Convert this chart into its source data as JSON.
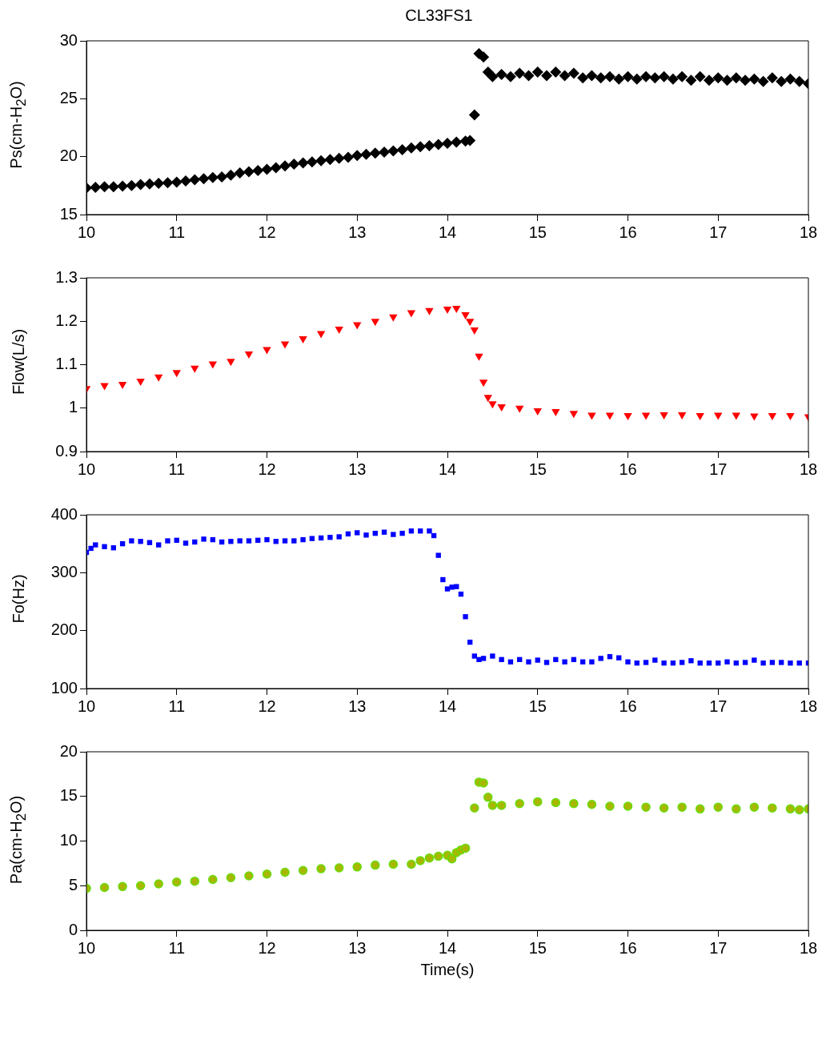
{
  "chart_data": [
    {
      "type": "scatter",
      "title": "CL33FS1",
      "ylabel": "Ps(cm-H$_{2}$O)",
      "marker": "diamond",
      "xlim": [
        10,
        18
      ],
      "xticks": [
        10,
        11,
        12,
        13,
        14,
        15,
        16,
        17,
        18
      ],
      "ylim": [
        15,
        30
      ],
      "yticks": [
        15,
        20,
        25,
        30
      ],
      "grid": false,
      "legend": false,
      "series": [
        {
          "color": "#000000",
          "x": [
            10.0,
            10.1,
            10.2,
            10.3,
            10.4,
            10.5,
            10.6,
            10.7,
            10.8,
            10.9,
            11.0,
            11.1,
            11.2,
            11.3,
            11.4,
            11.5,
            11.6,
            11.7,
            11.8,
            11.9,
            12.0,
            12.1,
            12.2,
            12.3,
            12.4,
            12.5,
            12.6,
            12.7,
            12.8,
            12.9,
            13.0,
            13.1,
            13.2,
            13.3,
            13.4,
            13.5,
            13.6,
            13.7,
            13.8,
            13.9,
            14.0,
            14.1,
            14.2,
            14.25,
            14.3,
            14.35,
            14.4,
            14.45,
            14.5,
            14.6,
            14.7,
            14.8,
            14.9,
            15.0,
            15.1,
            15.2,
            15.3,
            15.4,
            15.5,
            15.6,
            15.7,
            15.8,
            15.9,
            16.0,
            16.1,
            16.2,
            16.3,
            16.4,
            16.5,
            16.6,
            16.7,
            16.8,
            16.9,
            17.0,
            17.1,
            17.2,
            17.3,
            17.4,
            17.5,
            17.6,
            17.7,
            17.8,
            17.9,
            18.0
          ],
          "values": [
            17.3,
            17.35,
            17.4,
            17.4,
            17.45,
            17.5,
            17.6,
            17.65,
            17.7,
            17.75,
            17.8,
            17.9,
            18.0,
            18.1,
            18.2,
            18.25,
            18.4,
            18.6,
            18.7,
            18.8,
            18.9,
            19.05,
            19.2,
            19.35,
            19.45,
            19.55,
            19.65,
            19.75,
            19.85,
            19.95,
            20.1,
            20.2,
            20.3,
            20.4,
            20.5,
            20.6,
            20.75,
            20.85,
            20.95,
            21.05,
            21.15,
            21.25,
            21.35,
            21.4,
            23.6,
            28.9,
            28.6,
            27.3,
            26.9,
            27.1,
            26.9,
            27.2,
            27.0,
            27.3,
            27.0,
            27.3,
            27.0,
            27.2,
            26.8,
            27.0,
            26.8,
            26.9,
            26.7,
            26.9,
            26.7,
            26.9,
            26.8,
            26.9,
            26.7,
            26.9,
            26.6,
            26.9,
            26.6,
            26.8,
            26.6,
            26.8,
            26.6,
            26.7,
            26.5,
            26.8,
            26.5,
            26.7,
            26.5,
            26.3
          ]
        }
      ]
    },
    {
      "type": "scatter",
      "ylabel": "Flow(L/s)",
      "marker": "triangle",
      "xlim": [
        10,
        18
      ],
      "xticks": [
        10,
        11,
        12,
        13,
        14,
        15,
        16,
        17,
        18
      ],
      "ylim": [
        0.9,
        1.3
      ],
      "yticks": [
        0.9,
        1,
        1.1,
        1.2,
        1.3
      ],
      "grid": false,
      "legend": false,
      "series": [
        {
          "color": "#ff0000",
          "x": [
            10.0,
            10.2,
            10.4,
            10.6,
            10.8,
            11.0,
            11.2,
            11.4,
            11.6,
            11.8,
            12.0,
            12.2,
            12.4,
            12.6,
            12.8,
            13.0,
            13.2,
            13.4,
            13.6,
            13.8,
            14.0,
            14.1,
            14.2,
            14.25,
            14.3,
            14.35,
            14.4,
            14.45,
            14.5,
            14.6,
            14.8,
            15.0,
            15.2,
            15.4,
            15.6,
            15.8,
            16.0,
            16.2,
            16.4,
            16.6,
            16.8,
            17.0,
            17.2,
            17.4,
            17.6,
            17.8,
            18.0
          ],
          "values": [
            1.045,
            1.052,
            1.055,
            1.062,
            1.072,
            1.082,
            1.092,
            1.102,
            1.108,
            1.125,
            1.135,
            1.148,
            1.16,
            1.172,
            1.182,
            1.192,
            1.2,
            1.21,
            1.22,
            1.225,
            1.228,
            1.23,
            1.215,
            1.2,
            1.18,
            1.12,
            1.06,
            1.025,
            1.01,
            1.003,
            1.0,
            0.994,
            0.992,
            0.988,
            0.984,
            0.984,
            0.983,
            0.984,
            0.985,
            0.985,
            0.983,
            0.984,
            0.984,
            0.982,
            0.983,
            0.983,
            0.98
          ]
        }
      ]
    },
    {
      "type": "scatter",
      "ylabel": "Fo(Hz)",
      "marker": "square",
      "xlim": [
        10,
        18
      ],
      "xticks": [
        10,
        11,
        12,
        13,
        14,
        15,
        16,
        17,
        18
      ],
      "ylim": [
        100,
        400
      ],
      "yticks": [
        100,
        200,
        300,
        400
      ],
      "grid": false,
      "legend": false,
      "series": [
        {
          "color": "#0000ff",
          "x": [
            10.0,
            10.05,
            10.1,
            10.2,
            10.3,
            10.4,
            10.5,
            10.6,
            10.7,
            10.8,
            10.9,
            11.0,
            11.1,
            11.2,
            11.3,
            11.4,
            11.5,
            11.6,
            11.7,
            11.8,
            11.9,
            12.0,
            12.1,
            12.2,
            12.3,
            12.4,
            12.5,
            12.6,
            12.7,
            12.8,
            12.9,
            13.0,
            13.1,
            13.2,
            13.3,
            13.4,
            13.5,
            13.6,
            13.7,
            13.8,
            13.85,
            13.9,
            13.95,
            14.0,
            14.05,
            14.1,
            14.15,
            14.2,
            14.25,
            14.3,
            14.35,
            14.4,
            14.5,
            14.6,
            14.7,
            14.8,
            14.9,
            15.0,
            15.1,
            15.2,
            15.3,
            15.4,
            15.5,
            15.6,
            15.7,
            15.8,
            15.9,
            16.0,
            16.1,
            16.2,
            16.3,
            16.4,
            16.5,
            16.6,
            16.7,
            16.8,
            16.9,
            17.0,
            17.1,
            17.2,
            17.3,
            17.4,
            17.5,
            17.6,
            17.7,
            17.8,
            17.9,
            18.0
          ],
          "values": [
            335,
            342,
            348,
            345,
            343,
            350,
            355,
            354,
            352,
            348,
            355,
            356,
            351,
            353,
            358,
            357,
            353,
            354,
            355,
            355,
            356,
            357,
            354,
            355,
            355,
            357,
            359,
            360,
            361,
            362,
            367,
            369,
            365,
            368,
            370,
            366,
            368,
            372,
            372,
            372,
            364,
            330,
            288,
            272,
            275,
            276,
            263,
            224,
            180,
            156,
            150,
            152,
            156,
            150,
            146,
            150,
            146,
            149,
            145,
            150,
            146,
            150,
            146,
            146,
            152,
            155,
            153,
            146,
            144,
            145,
            149,
            144,
            144,
            145,
            148,
            144,
            144,
            144,
            146,
            144,
            145,
            149,
            144,
            145,
            145,
            144,
            144,
            144
          ]
        }
      ]
    },
    {
      "type": "scatter",
      "ylabel": "Pa(cm-H$_{2}$O)",
      "xlabel": "Time(s)",
      "marker": "circle",
      "xlim": [
        10,
        18
      ],
      "xticks": [
        10,
        11,
        12,
        13,
        14,
        15,
        16,
        17,
        18
      ],
      "ylim": [
        0,
        20
      ],
      "yticks": [
        0,
        5,
        10,
        15,
        20
      ],
      "grid": false,
      "legend": false,
      "series": [
        {
          "color": "#66dd00",
          "x": [
            10.0,
            10.2,
            10.4,
            10.6,
            10.8,
            11.0,
            11.2,
            11.4,
            11.6,
            11.8,
            12.0,
            12.2,
            12.4,
            12.6,
            12.8,
            13.0,
            13.2,
            13.4,
            13.6,
            13.7,
            13.8,
            13.9,
            14.0,
            14.05,
            14.1,
            14.15,
            14.2,
            14.3,
            14.35,
            14.4,
            14.45,
            14.5,
            14.6,
            14.8,
            15.0,
            15.2,
            15.4,
            15.6,
            15.8,
            16.0,
            16.2,
            16.4,
            16.6,
            16.8,
            17.0,
            17.2,
            17.4,
            17.6,
            17.8,
            17.9,
            18.0
          ],
          "values": [
            4.7,
            4.8,
            4.9,
            5.0,
            5.2,
            5.4,
            5.5,
            5.7,
            5.9,
            6.1,
            6.3,
            6.5,
            6.7,
            6.9,
            7.0,
            7.1,
            7.3,
            7.4,
            7.4,
            7.8,
            8.1,
            8.3,
            8.4,
            8.0,
            8.7,
            9.0,
            9.2,
            13.7,
            16.6,
            16.5,
            14.9,
            14.0,
            14.0,
            14.2,
            14.4,
            14.3,
            14.2,
            14.1,
            13.9,
            13.9,
            13.8,
            13.7,
            13.8,
            13.6,
            13.8,
            13.6,
            13.8,
            13.7,
            13.6,
            13.5,
            13.6
          ]
        }
      ]
    }
  ]
}
